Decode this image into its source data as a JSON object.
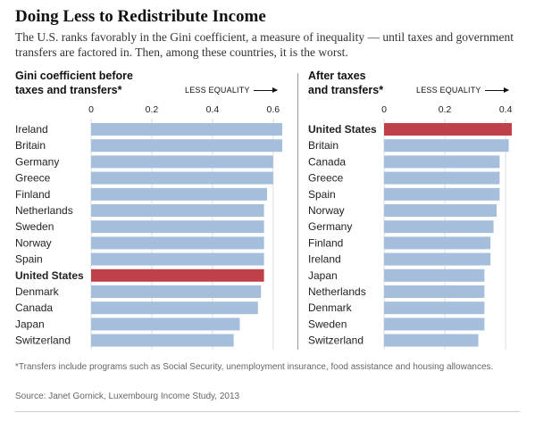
{
  "header": {
    "title": "Doing Less to Redistribute Income",
    "subtitle": "The U.S. ranks favorably in the Gini coefficient, a measure of inequality — until taxes and government transfers are factored in. Then, among these countries, it is the worst."
  },
  "annotation": {
    "less_equality": "LESS EQUALITY"
  },
  "footer": {
    "footnote": "*Transfers include programs such as Social Security, unemployment insurance, food assistance and housing allowances.",
    "source": "Source: Janet Gornick, Luxembourg Income Study, 2013"
  },
  "colors": {
    "bar": "#a5bedc",
    "highlight": "#c0404a",
    "text": "#222222"
  },
  "chart_data": [
    {
      "type": "bar",
      "orientation": "horizontal",
      "title_lines": [
        "Gini coefficient before",
        "taxes and transfers*"
      ],
      "xlim": [
        0,
        0.63
      ],
      "ticks": [
        0,
        0.2,
        0.4,
        0.6
      ],
      "tick_labels": [
        "0",
        "0.2",
        "0.4",
        "0.6"
      ],
      "highlight": "United States",
      "categories": [
        "Ireland",
        "Britain",
        "Germany",
        "Greece",
        "Finland",
        "Netherlands",
        "Sweden",
        "Norway",
        "Spain",
        "United States",
        "Denmark",
        "Canada",
        "Japan",
        "Switzerland"
      ],
      "values": [
        0.63,
        0.63,
        0.6,
        0.6,
        0.58,
        0.57,
        0.57,
        0.57,
        0.57,
        0.57,
        0.56,
        0.55,
        0.49,
        0.47
      ]
    },
    {
      "type": "bar",
      "orientation": "horizontal",
      "title_lines": [
        "After taxes",
        "and transfers*"
      ],
      "xlim": [
        0,
        0.42
      ],
      "ticks": [
        0,
        0.2,
        0.4
      ],
      "tick_labels": [
        "0",
        "0.2",
        "0.4"
      ],
      "highlight": "United States",
      "categories": [
        "United States",
        "Britain",
        "Canada",
        "Greece",
        "Spain",
        "Norway",
        "Germany",
        "Finland",
        "Ireland",
        "Japan",
        "Netherlands",
        "Denmark",
        "Sweden",
        "Switzerland"
      ],
      "values": [
        0.42,
        0.41,
        0.38,
        0.38,
        0.38,
        0.37,
        0.36,
        0.35,
        0.35,
        0.33,
        0.33,
        0.33,
        0.33,
        0.31
      ]
    }
  ]
}
